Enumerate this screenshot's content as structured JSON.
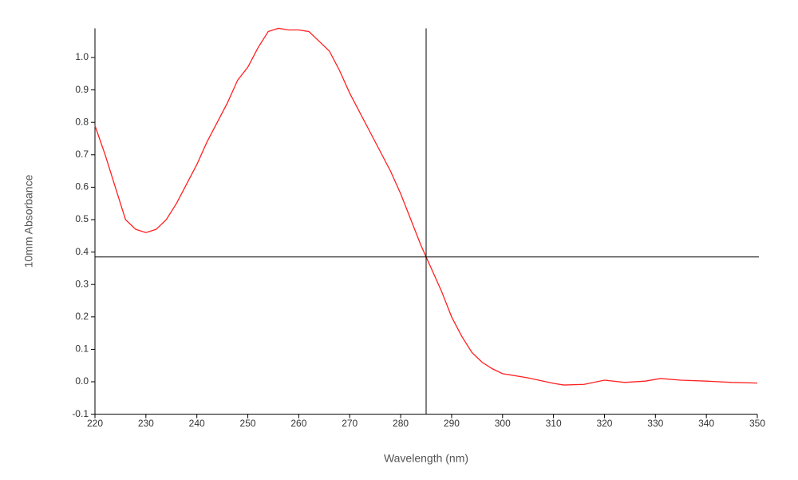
{
  "chart_data": {
    "type": "line",
    "x_label": "Wavelength (nm)",
    "y_label": "10mm Absorbance",
    "x": [
      220,
      222,
      224,
      226,
      228,
      230,
      232,
      234,
      236,
      238,
      240,
      242,
      244,
      246,
      248,
      250,
      252,
      254,
      256,
      258,
      260,
      262,
      264,
      266,
      268,
      270,
      272,
      274,
      276,
      278,
      280,
      282,
      284,
      285,
      286,
      288,
      290,
      292,
      294,
      296,
      298,
      300,
      305,
      310,
      312,
      316,
      320,
      324,
      328,
      331,
      335,
      340,
      345,
      350
    ],
    "series": [
      {
        "color": "#ff2020",
        "values": [
          0.79,
          0.7,
          0.6,
          0.5,
          0.47,
          0.46,
          0.47,
          0.5,
          0.55,
          0.61,
          0.67,
          0.74,
          0.8,
          0.86,
          0.93,
          0.97,
          1.03,
          1.08,
          1.09,
          1.085,
          1.085,
          1.08,
          1.05,
          1.02,
          0.96,
          0.89,
          0.83,
          0.77,
          0.71,
          0.65,
          0.58,
          0.5,
          0.42,
          0.385,
          0.35,
          0.28,
          0.2,
          0.14,
          0.09,
          0.06,
          0.04,
          0.025,
          0.012,
          -0.005,
          -0.01,
          -0.008,
          0.005,
          -0.002,
          0.002,
          0.01,
          0.005,
          0.002,
          -0.002,
          -0.004
        ]
      }
    ],
    "xlim": [
      220,
      350
    ],
    "xticks": [
      220,
      230,
      240,
      250,
      260,
      270,
      280,
      290,
      300,
      310,
      320,
      330,
      340,
      350
    ],
    "ylim": [
      -0.1,
      1.09
    ],
    "yticks": [
      -0.1,
      {
        "value": 0,
        "label": "0.0"
      },
      0.1,
      0.2,
      0.3,
      0.4,
      0.5,
      0.6,
      0.7,
      0.8,
      0.9,
      {
        "value": 1,
        "label": "1.0"
      }
    ],
    "crosshair": {
      "x": 285,
      "y": 0.385
    },
    "crosshair_color": "#000000"
  }
}
